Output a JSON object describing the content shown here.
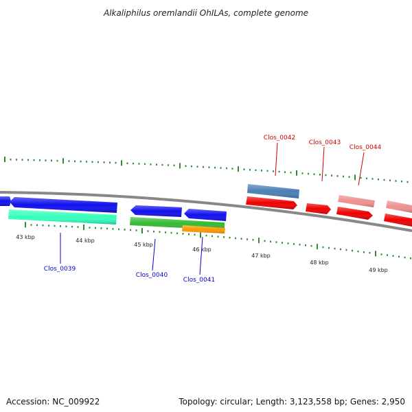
{
  "title": "Alkaliphilus oremlandii OhILAs, complete genome",
  "footer": {
    "accession": "Accession: NC_009922",
    "summary": "Topology: circular; Length: 3,123,558 bp; Genes: 2,950"
  },
  "colors": {
    "backbone": "#888888",
    "ticks": "#2e8b2e",
    "forward_label": "#cc0000",
    "reverse_label": "#0000cc",
    "blue_gene": "#1010ee",
    "red_gene": "#ee0000",
    "pink_gene": "#ee9090",
    "steel_gene": "#4a7fb5",
    "aqua_gene": "#33ffbb",
    "green_gene": "#33bb33",
    "orange_gene": "#ff9900"
  },
  "ticks": [
    {
      "label": "43 kbp"
    },
    {
      "label": "44 kbp"
    },
    {
      "label": "45 kbp"
    },
    {
      "label": "46 kbp"
    },
    {
      "label": "47 kbp"
    },
    {
      "label": "48 kbp"
    },
    {
      "label": "49 kbp"
    }
  ],
  "gene_labels": [
    {
      "name": "Clos_0039",
      "strand": "reverse"
    },
    {
      "name": "Clos_0040",
      "strand": "reverse"
    },
    {
      "name": "Clos_0041",
      "strand": "reverse"
    },
    {
      "name": "Clos_0042",
      "strand": "forward"
    },
    {
      "name": "Clos_0043",
      "strand": "forward"
    },
    {
      "name": "Clos_0044",
      "strand": "forward"
    }
  ]
}
